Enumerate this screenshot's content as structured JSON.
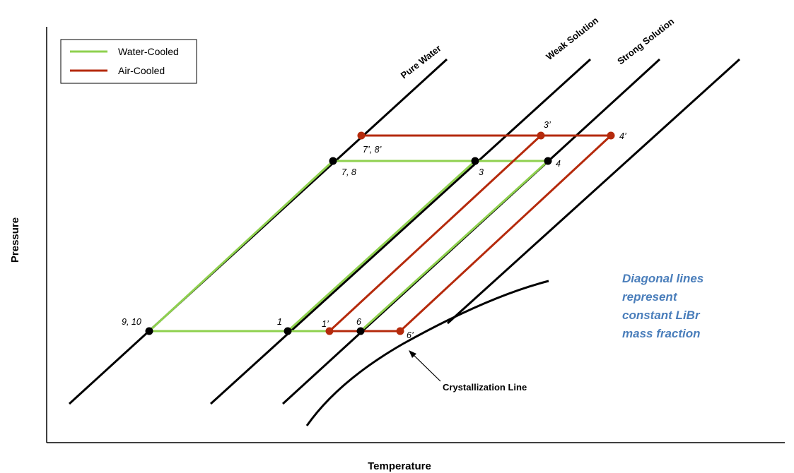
{
  "axes": {
    "x_label": "Temperature",
    "y_label": "Pressure"
  },
  "legend": [
    {
      "label": "Water-Cooled",
      "color": "#8fd14f"
    },
    {
      "label": "Air-Cooled",
      "color": "#b52a0c"
    }
  ],
  "concentration_lines": [
    "Pure Water",
    "Weak Solution",
    "Strong Solution"
  ],
  "state_points": {
    "water_cooled": [
      "9, 10",
      "1",
      "6",
      "7, 8",
      "3",
      "4"
    ],
    "air_cooled": [
      "1’",
      "6’",
      "7’, 8’",
      "3’",
      "4’"
    ]
  },
  "crystallization_label": "Crystallization Line",
  "note": {
    "lines": [
      "Diagonal lines",
      "represent",
      "constant LiBr",
      "mass fraction"
    ],
    "color": "#4a7ebb"
  },
  "colors": {
    "water_cooled": "#8fd14f",
    "air_cooled": "#b52a0c",
    "lines": "#000000"
  }
}
